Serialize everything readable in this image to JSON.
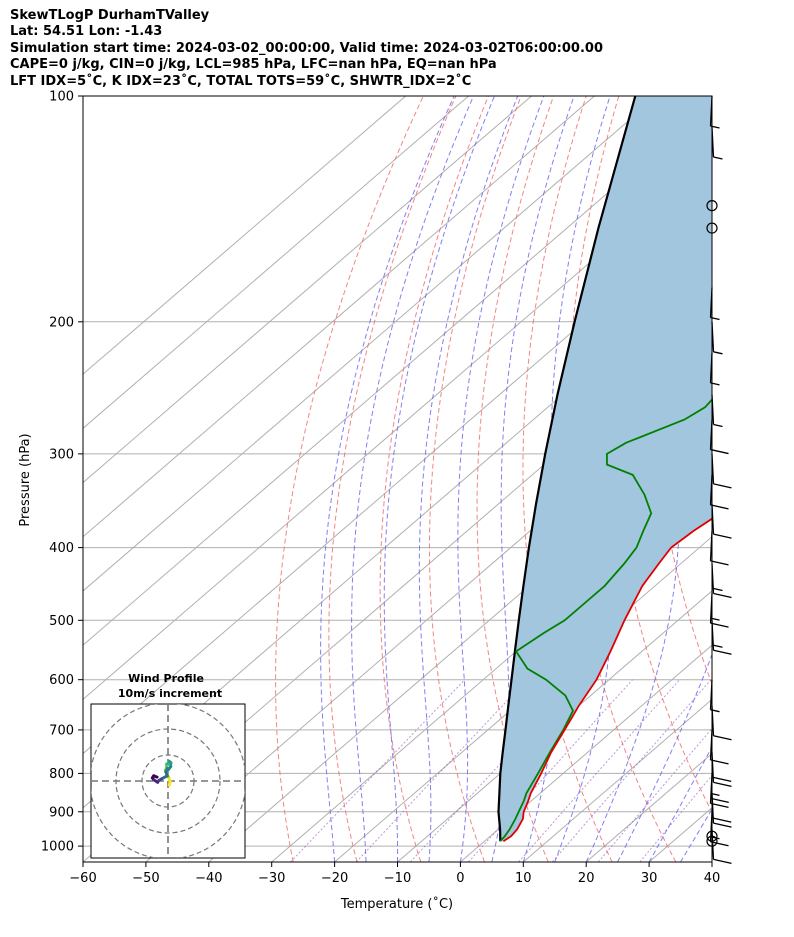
{
  "header": {
    "line1": "SkewTLogP DurhamTValley",
    "line2": "Lat: 54.51   Lon: -1.43",
    "line3": "Simulation start time: 2024-03-02_00:00:00, Valid time: 2024-03-02T06:00:00.00",
    "line4": "CAPE=0 j/kg, CIN=0 j/kg, LCL=985 hPa, LFC=nan hPa, EQ=nan hPa",
    "line5": "LFT IDX=5˚C, K IDX=23˚C, TOTAL TOTS=59˚C, SHWTR_IDX=2˚C"
  },
  "colors": {
    "temperature": "#e00000",
    "dewpoint": "#008000",
    "parcel": "#000000",
    "shade": "#a3c6df",
    "dry_adiabat": "#f07070",
    "moist_adiabat": "#6a6af0",
    "isotherm": "#b0b0b0",
    "mixing_ratio": "#9040c0"
  },
  "chart_data": {
    "type": "skew-t",
    "xlabel": "Temperature (˚C)",
    "ylabel": "Pressure (hPa)",
    "xlim": [
      -60,
      40
    ],
    "ylim": [
      1050,
      100
    ],
    "xticks": [
      -60,
      -50,
      -40,
      -30,
      -20,
      -10,
      0,
      10,
      20,
      30,
      40
    ],
    "yticks": [
      1000,
      900,
      800,
      700,
      600,
      500,
      400,
      300,
      200,
      100
    ],
    "grid": true,
    "series": [
      {
        "key": "temperature",
        "p": [
          985,
          970,
          950,
          920,
          900,
          870,
          850,
          800,
          750,
          700,
          650,
          600,
          550,
          500,
          450,
          420,
          400,
          380,
          350,
          330,
          310,
          300,
          280,
          260,
          240,
          230,
          220,
          200,
          180,
          170,
          160,
          150,
          140,
          130,
          120,
          110,
          100
        ],
        "t": [
          3.0,
          3.3,
          3.0,
          2.0,
          0.8,
          -0.5,
          -1.5,
          -3.5,
          -5.8,
          -7.8,
          -10.0,
          -12.0,
          -15.0,
          -18.5,
          -22.0,
          -23.5,
          -24.5,
          -24.0,
          -22.5,
          -21.0,
          -19.5,
          -19.5,
          -21.5,
          -23.5,
          -25.5,
          -26.5,
          -27.5,
          -30.5,
          -33.5,
          -35.0,
          -37.0,
          -38.5,
          -40.0,
          -41.5,
          -44.0,
          -46.0,
          -48.5
        ]
      },
      {
        "key": "dewpoint",
        "p": [
          985,
          970,
          950,
          920,
          900,
          870,
          850,
          800,
          750,
          700,
          660,
          630,
          600,
          580,
          550,
          520,
          500,
          480,
          450,
          420,
          400,
          380,
          360,
          340,
          320,
          310,
          300,
          290,
          270,
          260,
          250,
          240,
          230,
          220,
          210,
          200,
          190,
          180,
          170,
          160,
          150,
          140,
          130,
          120,
          110,
          100
        ],
        "t": [
          2.5,
          2.3,
          1.8,
          0.8,
          0.0,
          -1.2,
          -2.2,
          -4.0,
          -6.0,
          -8.0,
          -10.0,
          -14.0,
          -20.0,
          -25.0,
          -30.0,
          -29.0,
          -28.0,
          -28.0,
          -28.0,
          -29.0,
          -30.0,
          -32.0,
          -34.0,
          -38.5,
          -44.0,
          -50.0,
          -52.0,
          -51.0,
          -46.0,
          -45.0,
          -45.5,
          -46.5,
          -48.0,
          -49.5,
          -51.5,
          -53.5,
          -55.5,
          -57.0,
          -58.5,
          -60.0,
          -61.5,
          -63.5,
          -65.5,
          -67.5,
          -70.0,
          -72.0
        ]
      },
      {
        "key": "parcel",
        "p": [
          985,
          950,
          900,
          850,
          800,
          750,
          700,
          650,
          600,
          550,
          500,
          450,
          400,
          350,
          300,
          250,
          200,
          150,
          100
        ],
        "t": [
          2.5,
          0.3,
          -3.2,
          -6.5,
          -10.0,
          -13.5,
          -17.2,
          -21.2,
          -25.5,
          -30.2,
          -35.3,
          -40.9,
          -47.1,
          -54.0,
          -61.8,
          -70.8,
          -81.5,
          -95.0,
          -113.5
        ]
      }
    ],
    "wind_barbs": [
      {
        "p": 985,
        "speed_kt": 0
      },
      {
        "p": 970,
        "speed_kt": 0
      },
      {
        "p": 950,
        "speed_kt": 12
      },
      {
        "p": 900,
        "speed_kt": 18
      },
      {
        "p": 850,
        "speed_kt": 22
      },
      {
        "p": 800,
        "speed_kt": 25
      },
      {
        "p": 750,
        "speed_kt": 20
      },
      {
        "p": 700,
        "speed_kt": 14
      },
      {
        "p": 650,
        "speed_kt": 10
      },
      {
        "p": 600,
        "speed_kt": 8
      },
      {
        "p": 500,
        "speed_kt": 18
      },
      {
        "p": 460,
        "speed_kt": 15
      },
      {
        "p": 420,
        "speed_kt": 16
      },
      {
        "p": 380,
        "speed_kt": 14
      },
      {
        "p": 350,
        "speed_kt": 12
      },
      {
        "p": 320,
        "speed_kt": 10
      },
      {
        "p": 300,
        "speed_kt": 10
      },
      {
        "p": 270,
        "speed_kt": 10
      },
      {
        "p": 250,
        "speed_kt": 8
      },
      {
        "p": 220,
        "speed_kt": 5
      },
      {
        "p": 200,
        "speed_kt": 5
      },
      {
        "p": 180,
        "speed_kt": 5
      },
      {
        "p": 150,
        "speed_kt": 0
      },
      {
        "p": 140,
        "speed_kt": 0
      },
      {
        "p": 110,
        "speed_kt": 5
      },
      {
        "p": 100,
        "speed_kt": 5
      }
    ],
    "hodograph": {
      "title": "Wind Profile",
      "subtitle": "10m/s increment",
      "rings": [
        10,
        20,
        30
      ],
      "u": [
        0.5,
        0.8,
        0.6,
        0.2,
        -0.6,
        -1.0,
        -0.6,
        -0.5,
        0.2,
        0.6,
        1.1,
        1.0,
        0.2,
        -0.2,
        -0.8,
        -0.3,
        -2.5,
        -3.5,
        -4.0,
        -5.5,
        -6.0,
        -5.5,
        -4.2
      ],
      "v": [
        -1.5,
        -0.5,
        0.5,
        1.5,
        3.0,
        4.0,
        5.0,
        6.5,
        7.0,
        7.5,
        7.0,
        5.5,
        4.5,
        4.8,
        3.5,
        2.0,
        0.8,
        0.2,
        -0.5,
        0.5,
        1.2,
        2.0,
        1.5
      ]
    }
  }
}
